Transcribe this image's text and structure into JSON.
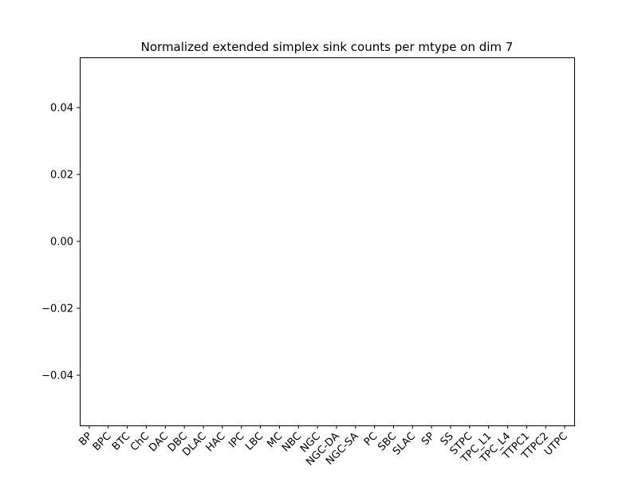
{
  "chart_data": {
    "type": "bar",
    "title": "Normalized extended simplex sink counts per mtype on dim 7",
    "xlabel": "",
    "ylabel": "",
    "categories": [
      "BP",
      "BPC",
      "BTC",
      "ChC",
      "DAC",
      "DBC",
      "DLAC",
      "HAC",
      "IPC",
      "LBC",
      "MC",
      "NBC",
      "NGC",
      "NGC-DA",
      "NGC-SA",
      "PC",
      "SBC",
      "SLAC",
      "SP",
      "SS",
      "STPC",
      "TPC_L1",
      "TPC_L4",
      "TTPC1",
      "TTPC2",
      "UTPC"
    ],
    "values": [
      0,
      0,
      0,
      0,
      0,
      0,
      0,
      0,
      0,
      0,
      0,
      0,
      0,
      0,
      0,
      0,
      0,
      0,
      0,
      0,
      0,
      0,
      0,
      0,
      0,
      0
    ],
    "ylim": [
      -0.055,
      0.055
    ],
    "yticks": [
      0.04,
      0.02,
      0.0,
      -0.02,
      -0.04
    ],
    "ytick_labels": [
      "0.04",
      "0.02",
      "0.00",
      "−0.02",
      "−0.04"
    ],
    "grid": false,
    "colors": {
      "axis": "#000000",
      "background": "#ffffff",
      "bar": "#1f77b4"
    }
  }
}
